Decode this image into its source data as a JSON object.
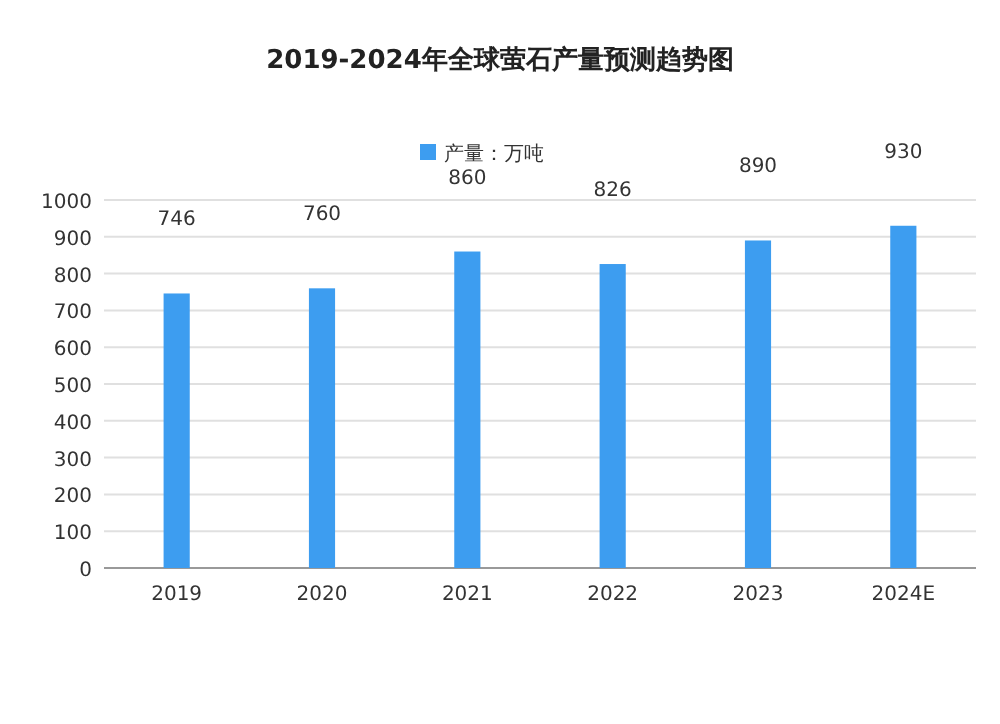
{
  "chart_data": {
    "type": "bar",
    "title": "2019-2024年全球萤石产量预测趋势图",
    "categories": [
      "2019",
      "2020",
      "2021",
      "2022",
      "2023",
      "2024E"
    ],
    "series": [
      {
        "name": "产量：万吨",
        "color": "#3d9df0",
        "values": [
          746,
          760,
          860,
          826,
          890,
          930
        ]
      }
    ],
    "ylim": [
      0,
      1000
    ],
    "yticks": [
      0,
      100,
      200,
      300,
      400,
      500,
      600,
      700,
      800,
      900,
      1000
    ],
    "grid": "y",
    "legend": "top",
    "data_labels": true
  }
}
